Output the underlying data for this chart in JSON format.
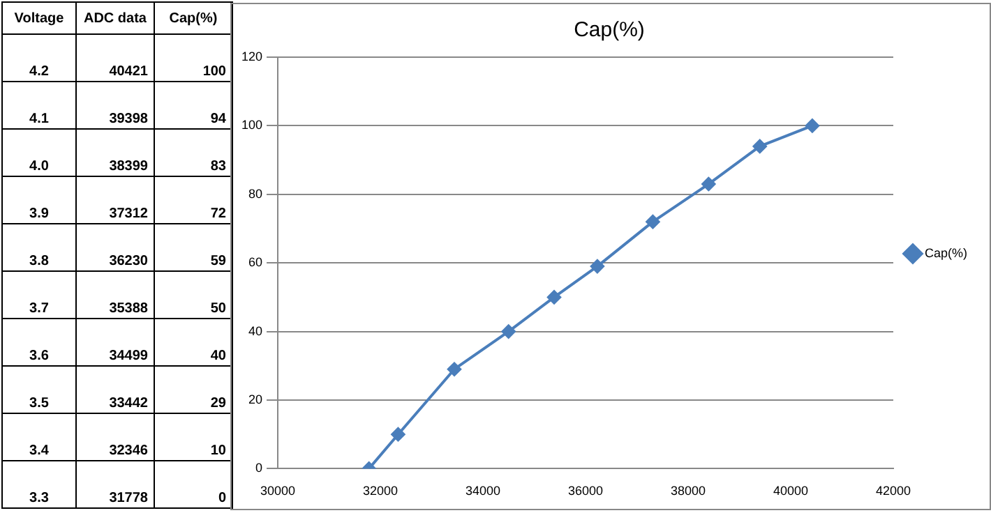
{
  "chart_data": {
    "type": "line",
    "title": "Cap(%)",
    "x": [
      40421,
      39398,
      38399,
      37312,
      36230,
      35388,
      34499,
      33442,
      32346,
      31778
    ],
    "series": [
      {
        "name": "Cap(%)",
        "color": "#4a7ebb",
        "values": [
          100,
          94,
          83,
          72,
          59,
          50,
          40,
          29,
          10,
          0
        ]
      }
    ],
    "xlim": [
      30000,
      42000
    ],
    "xticks": [
      30000,
      32000,
      34000,
      36000,
      38000,
      40000,
      42000
    ],
    "ylim": [
      0,
      120
    ],
    "yticks": [
      0,
      20,
      40,
      60,
      80,
      100,
      120
    ],
    "grid": "y",
    "legend": "right",
    "marker": "diamond",
    "line_style": "solid",
    "annotations": [
      "Voltage",
      "ADC data",
      "Cap(%)",
      "4.2",
      "40421",
      "100",
      "4.1",
      "39398",
      "94",
      "4.0",
      "38399",
      "83",
      "3.9",
      "37312",
      "72",
      "3.8",
      "36230",
      "59",
      "3.7",
      "35388",
      "50",
      "3.6",
      "34499",
      "40",
      "3.5",
      "33442",
      "29",
      "3.4",
      "32346",
      "10",
      "3.3",
      "31778",
      "0"
    ]
  }
}
